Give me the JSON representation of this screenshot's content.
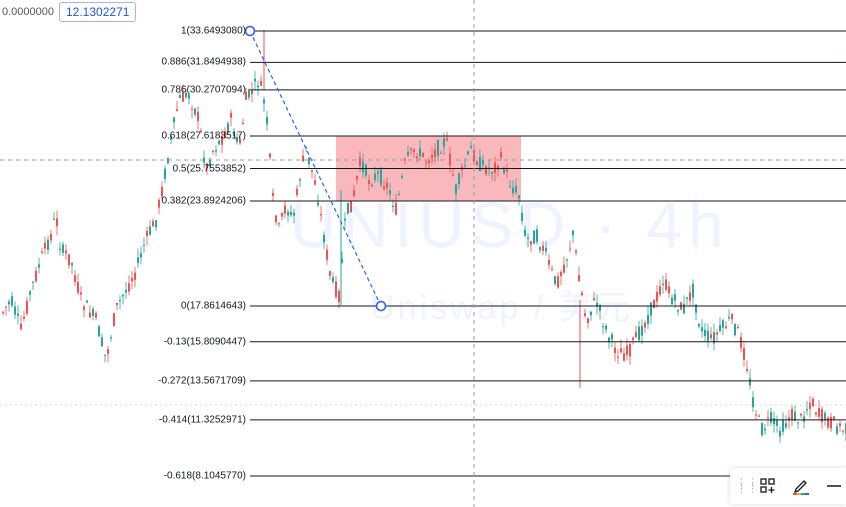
{
  "header": {
    "left_value": "0.0000000",
    "price_badge": "12.1302271"
  },
  "watermark": {
    "symbol": "UNIUSD · 4h",
    "name": "Uniswap / 美元"
  },
  "fib_levels": [
    {
      "label": "1(33.6493080)",
      "value": 33.649308
    },
    {
      "label": "0.886(31.8494938)",
      "value": 31.8494938
    },
    {
      "label": "0.786(30.2707094)",
      "value": 30.2707094
    },
    {
      "label": "0.618(27.6183517)",
      "value": 27.6183517
    },
    {
      "label": "0.5(25.7553852)",
      "value": 25.7553852
    },
    {
      "label": "0.382(23.8924206)",
      "value": 23.8924206
    },
    {
      "label": "0(17.8614643)",
      "value": 17.8614643
    },
    {
      "label": "-0.13(15.8090447)",
      "value": 15.8090447
    },
    {
      "label": "-0.272(13.5671709)",
      "value": 13.5671709
    },
    {
      "label": "-0.414(11.3252971)",
      "value": 11.3252971
    },
    {
      "label": "-0.618(8.1045770)",
      "value": 8.104577
    }
  ],
  "highlight_zone": {
    "from_level": 0.618,
    "to_level": 0.382,
    "color": "#f7a1a6"
  },
  "colors": {
    "up": "#26a69a",
    "down": "#ef5350",
    "fib_line": "#131722",
    "trend_line": "#2962ff"
  },
  "toolbar": {
    "items": [
      {
        "name": "drag-handle-icon"
      },
      {
        "name": "add-layout-icon"
      },
      {
        "name": "pencil-icon"
      },
      {
        "name": "line-icon"
      }
    ]
  }
}
